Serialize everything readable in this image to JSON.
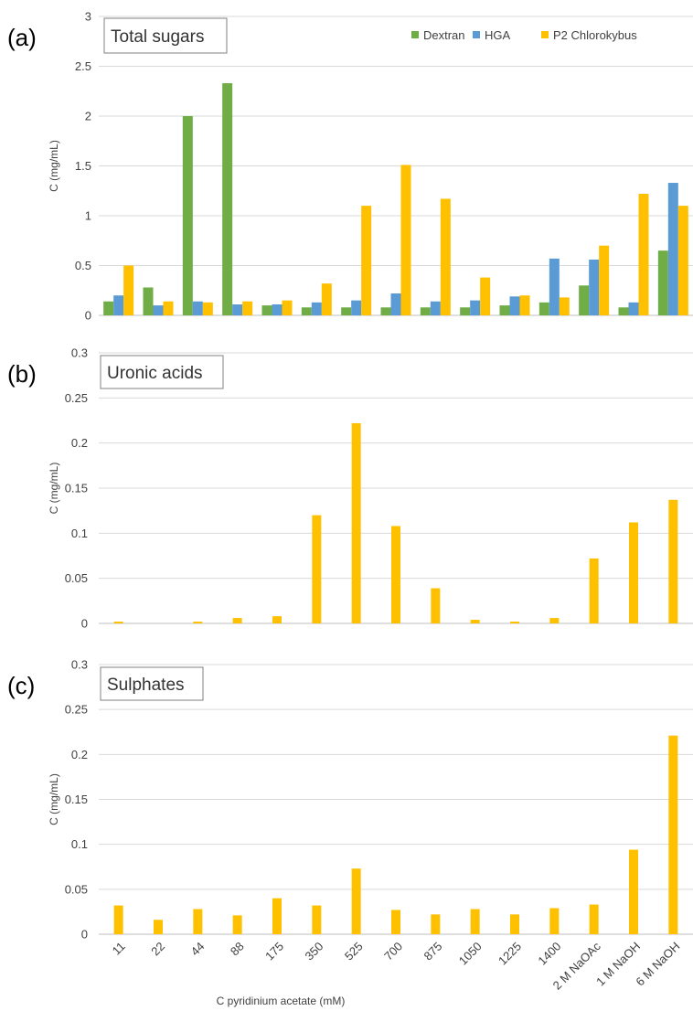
{
  "colors": {
    "Dextran": "#70ad47",
    "HGA": "#5b9bd5",
    "P2 Chlorokybus": "#ffc000"
  },
  "xlabel": "C pyridinium acetate (mM)",
  "chart_data": [
    {
      "type": "bar",
      "letter": "(a)",
      "title": "Total sugars",
      "ylabel": "C (mg/mL)",
      "ylim": [
        0,
        3
      ],
      "yticks": [
        0,
        0.5,
        1,
        1.5,
        2,
        2.5,
        3
      ],
      "ytick_labels": [
        "0",
        "0.5",
        "1",
        "1.5",
        "2",
        "2.5",
        "3"
      ],
      "categories": [
        "11",
        "22",
        "44",
        "88",
        "175",
        "350",
        "525",
        "700",
        "875",
        "1050",
        "1225",
        "1400",
        "2 M NaOAc",
        "1 M NaOH",
        "6 M NaOH"
      ],
      "legend": {
        "position": "top-right",
        "entries": [
          "Dextran",
          "HGA",
          "P2 Chlorokybus"
        ]
      },
      "grid": true,
      "series": [
        {
          "name": "Dextran",
          "values": [
            0.14,
            0.28,
            2.0,
            2.33,
            0.1,
            0.08,
            0.08,
            0.08,
            0.08,
            0.08,
            0.1,
            0.13,
            0.3,
            0.08,
            0.65
          ]
        },
        {
          "name": "HGA",
          "values": [
            0.2,
            0.1,
            0.14,
            0.11,
            0.11,
            0.13,
            0.15,
            0.22,
            0.14,
            0.15,
            0.19,
            0.57,
            0.56,
            0.13,
            1.33
          ]
        },
        {
          "name": "P2 Chlorokybus",
          "values": [
            0.5,
            0.14,
            0.13,
            0.14,
            0.15,
            0.32,
            1.1,
            1.51,
            1.17,
            0.38,
            0.2,
            0.18,
            0.7,
            1.22,
            1.1
          ]
        }
      ]
    },
    {
      "type": "bar",
      "letter": "(b)",
      "title": "Uronic acids",
      "ylabel": "C (mg/mL)",
      "ylim": [
        0,
        0.3
      ],
      "yticks": [
        0,
        0.05,
        0.1,
        0.15,
        0.2,
        0.25,
        0.3
      ],
      "ytick_labels": [
        "0",
        "0.05",
        "0.1",
        "0.15",
        "0.2",
        "0.25",
        "0.3"
      ],
      "categories": [
        "11",
        "22",
        "44",
        "88",
        "175",
        "350",
        "525",
        "700",
        "875",
        "1050",
        "1225",
        "1400",
        "2 M NaOAc",
        "1 M NaOH",
        "6 M NaOH"
      ],
      "grid": true,
      "series": [
        {
          "name": "P2 Chlorokybus",
          "values": [
            0.002,
            0.0,
            0.002,
            0.006,
            0.008,
            0.12,
            0.222,
            0.108,
            0.039,
            0.004,
            0.002,
            0.006,
            0.072,
            0.112,
            0.137
          ]
        }
      ]
    },
    {
      "type": "bar",
      "letter": "(c)",
      "title": "Sulphates",
      "ylabel": "C (mg/mL)",
      "ylim": [
        0,
        0.3
      ],
      "yticks": [
        0,
        0.05,
        0.1,
        0.15,
        0.2,
        0.25,
        0.3
      ],
      "ytick_labels": [
        "0",
        "0.05",
        "0.1",
        "0.15",
        "0.2",
        "0.25",
        "0.3"
      ],
      "categories": [
        "11",
        "22",
        "44",
        "88",
        "175",
        "350",
        "525",
        "700",
        "875",
        "1050",
        "1225",
        "1400",
        "2 M NaOAc",
        "1 M NaOH",
        "6 M NaOH"
      ],
      "grid": true,
      "xtick_labels_shown": true,
      "series": [
        {
          "name": "P2 Chlorokybus",
          "values": [
            0.032,
            0.016,
            0.028,
            0.021,
            0.04,
            0.032,
            0.073,
            0.027,
            0.022,
            0.028,
            0.022,
            0.029,
            0.033,
            0.094,
            0.221
          ]
        }
      ]
    }
  ]
}
